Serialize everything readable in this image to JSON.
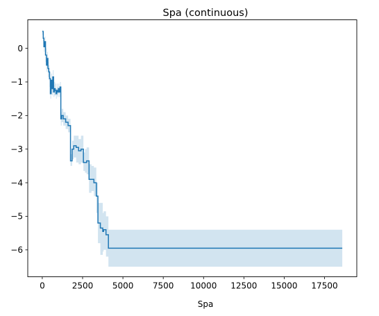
{
  "chart_data": {
    "type": "line",
    "title": "Spa (continuous)",
    "xlabel": "Spa",
    "ylabel": "",
    "xlim": [
      -900,
      19500
    ],
    "ylim": [
      -6.8,
      0.85
    ],
    "xticks": [
      0,
      2500,
      5000,
      7500,
      10000,
      12500,
      15000,
      17500
    ],
    "xtick_labels": [
      "0",
      "2500",
      "5000",
      "7500",
      "10000",
      "12500",
      "15000",
      "17500"
    ],
    "yticks": [
      0,
      -1,
      -2,
      -3,
      -4,
      -5,
      -6
    ],
    "ytick_labels": [
      "0",
      "−1",
      "−2",
      "−3",
      "−4",
      "−5",
      "−6"
    ],
    "grid": false,
    "colors": {
      "line": "#1f77b4",
      "band": "#1f77b4"
    },
    "series": [
      {
        "step": "post",
        "x": [
          0,
          60,
          100,
          150,
          200,
          260,
          300,
          350,
          400,
          450,
          500,
          550,
          600,
          650,
          700,
          750,
          800,
          850,
          900,
          950,
          1000,
          1050,
          1100,
          1150,
          1200,
          1300,
          1450,
          1600,
          1750,
          1850,
          1950,
          2100,
          2250,
          2400,
          2550,
          2650,
          2750,
          2900,
          3050,
          3200,
          3350,
          3450,
          3600,
          3750,
          3800,
          3950,
          4100,
          18600
        ],
        "y": [
          0.5,
          0.3,
          0.05,
          0.2,
          -0.2,
          -0.5,
          -0.3,
          -0.6,
          -0.7,
          -0.9,
          -1.35,
          -0.95,
          -1.2,
          -0.85,
          -1.3,
          -1.2,
          -1.25,
          -1.35,
          -1.25,
          -1.3,
          -1.2,
          -1.3,
          -1.15,
          -2.1,
          -2.0,
          -2.1,
          -2.2,
          -2.3,
          -3.35,
          -3.0,
          -2.9,
          -2.95,
          -3.05,
          -3.0,
          -3.4,
          -3.4,
          -3.35,
          -3.9,
          -3.9,
          -4.0,
          -4.4,
          -5.2,
          -5.35,
          -5.45,
          -5.4,
          -5.55,
          -5.95,
          -5.95
        ],
        "band_lower": [
          0.4,
          0.15,
          -0.1,
          0.0,
          -0.4,
          -0.7,
          -0.55,
          -0.85,
          -0.95,
          -1.15,
          -1.5,
          -1.2,
          -1.4,
          -1.1,
          -1.45,
          -1.4,
          -1.4,
          -1.5,
          -1.4,
          -1.45,
          -1.35,
          -1.45,
          -1.3,
          -2.3,
          -2.2,
          -2.3,
          -2.4,
          -2.5,
          -3.5,
          -3.3,
          -3.25,
          -3.4,
          -3.45,
          -3.4,
          -3.65,
          -3.7,
          -3.75,
          -4.3,
          -4.25,
          -4.4,
          -4.9,
          -5.8,
          -6.15,
          -6.05,
          -6.0,
          -6.2,
          -6.5,
          -6.5
        ],
        "band_upper": [
          0.55,
          0.45,
          0.2,
          0.35,
          0.0,
          -0.3,
          -0.1,
          -0.4,
          -0.5,
          -0.7,
          -1.2,
          -0.75,
          -1.0,
          -0.65,
          -1.1,
          -1.0,
          -1.05,
          -1.2,
          -1.05,
          -1.15,
          -1.05,
          -1.15,
          -1.0,
          -1.9,
          -1.8,
          -1.9,
          -2.0,
          -2.1,
          -3.15,
          -2.75,
          -2.6,
          -2.6,
          -2.7,
          -2.6,
          -3.1,
          -3.0,
          -2.95,
          -3.45,
          -3.5,
          -3.55,
          -4.0,
          -4.6,
          -4.6,
          -4.9,
          -4.85,
          -5.0,
          -5.4,
          -5.4
        ]
      }
    ]
  }
}
